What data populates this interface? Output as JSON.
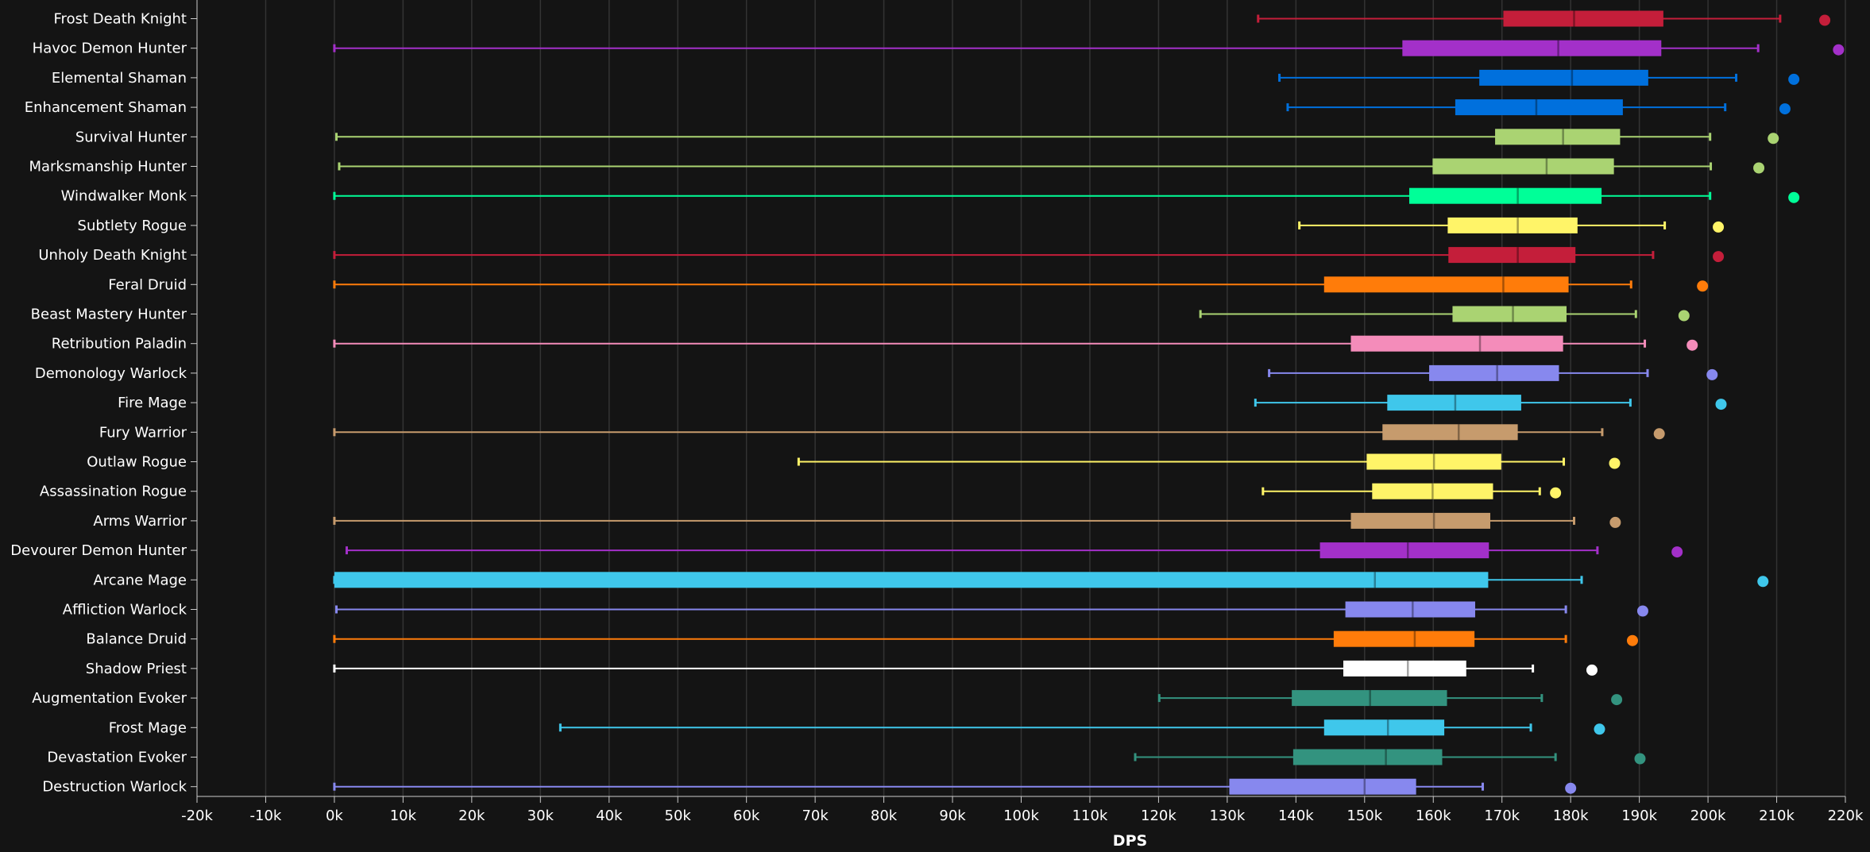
{
  "chart_data": {
    "type": "boxplot",
    "xlabel": "DPS",
    "xlim": [
      -20000,
      220000
    ],
    "x_ticks": [
      "-20k",
      "-10k",
      "0k",
      "10k",
      "20k",
      "30k",
      "40k",
      "50k",
      "60k",
      "70k",
      "80k",
      "90k",
      "100k",
      "110k",
      "120k",
      "130k",
      "140k",
      "150k",
      "160k",
      "170k",
      "180k",
      "190k",
      "200k",
      "210k",
      "220k"
    ],
    "grid": true,
    "orientation": "horizontal",
    "series": [
      {
        "name": "Frost Death Knight",
        "color": "#C41E3A",
        "min": 134500,
        "q1": 170200,
        "median": 180500,
        "q3": 193500,
        "max": 210500,
        "outlier": 217000
      },
      {
        "name": "Havoc Demon Hunter",
        "color": "#A330C9",
        "min": 0,
        "q1": 155500,
        "median": 178200,
        "q3": 193200,
        "max": 207300,
        "outlier": 219000
      },
      {
        "name": "Elemental Shaman",
        "color": "#0070DD",
        "min": 137600,
        "q1": 166700,
        "median": 180200,
        "q3": 191300,
        "max": 204100,
        "outlier": 212500
      },
      {
        "name": "Enhancement Shaman",
        "color": "#0070DD",
        "min": 138800,
        "q1": 163200,
        "median": 175000,
        "q3": 187600,
        "max": 202500,
        "outlier": 211200
      },
      {
        "name": "Survival Hunter",
        "color": "#AAD372",
        "min": 300,
        "q1": 169000,
        "median": 178900,
        "q3": 187200,
        "max": 200300,
        "outlier": 209500
      },
      {
        "name": "Marksmanship Hunter",
        "color": "#AAD372",
        "min": 700,
        "q1": 159900,
        "median": 176500,
        "q3": 186300,
        "max": 200400,
        "outlier": 207400
      },
      {
        "name": "Windwalker Monk",
        "color": "#00FF98",
        "min": 0,
        "q1": 156500,
        "median": 172300,
        "q3": 184500,
        "max": 200300,
        "outlier": 212500
      },
      {
        "name": "Subtlety Rogue",
        "color": "#FFF468",
        "min": 140500,
        "q1": 162100,
        "median": 172300,
        "q3": 181000,
        "max": 193700,
        "outlier": 201500
      },
      {
        "name": "Unholy Death Knight",
        "color": "#C41E3A",
        "min": 0,
        "q1": 162200,
        "median": 172300,
        "q3": 180700,
        "max": 192000,
        "outlier": 201500
      },
      {
        "name": "Feral Druid",
        "color": "#FF7C0A",
        "min": 0,
        "q1": 144100,
        "median": 170200,
        "q3": 179700,
        "max": 188800,
        "outlier": 199200
      },
      {
        "name": "Beast Mastery Hunter",
        "color": "#AAD372",
        "min": 126100,
        "q1": 162800,
        "median": 171600,
        "q3": 179400,
        "max": 189500,
        "outlier": 196500
      },
      {
        "name": "Retribution Paladin",
        "color": "#F48CBA",
        "min": 0,
        "q1": 148000,
        "median": 166800,
        "q3": 178900,
        "max": 190800,
        "outlier": 197700
      },
      {
        "name": "Demonology Warlock",
        "color": "#8788EE",
        "min": 136100,
        "q1": 159400,
        "median": 169300,
        "q3": 178300,
        "max": 191200,
        "outlier": 200600
      },
      {
        "name": "Fire Mage",
        "color": "#3FC7EB",
        "min": 134100,
        "q1": 153300,
        "median": 163200,
        "q3": 172800,
        "max": 188700,
        "outlier": 201900
      },
      {
        "name": "Fury Warrior",
        "color": "#C69B6D",
        "min": 0,
        "q1": 152600,
        "median": 163700,
        "q3": 172300,
        "max": 184600,
        "outlier": 192900
      },
      {
        "name": "Outlaw Rogue",
        "color": "#FFF468",
        "min": 67600,
        "q1": 150300,
        "median": 160100,
        "q3": 169900,
        "max": 179000,
        "outlier": 186400
      },
      {
        "name": "Assassination Rogue",
        "color": "#FFF468",
        "min": 135200,
        "q1": 151100,
        "median": 159900,
        "q3": 168700,
        "max": 175500,
        "outlier": 177800
      },
      {
        "name": "Arms Warrior",
        "color": "#C69B6D",
        "min": 0,
        "q1": 148000,
        "median": 160100,
        "q3": 168300,
        "max": 180500,
        "outlier": 186500
      },
      {
        "name": "Devourer Demon Hunter",
        "color": "#A330C9",
        "min": 1800,
        "q1": 143500,
        "median": 156300,
        "q3": 168100,
        "max": 183900,
        "outlier": 195500
      },
      {
        "name": "Arcane Mage",
        "color": "#3FC7EB",
        "min": 0,
        "q1": 0,
        "median": 151500,
        "q3": 168000,
        "max": 181600,
        "outlier": 208000
      },
      {
        "name": "Affliction Warlock",
        "color": "#8788EE",
        "min": 300,
        "q1": 147200,
        "median": 157000,
        "q3": 166100,
        "max": 179300,
        "outlier": 190500
      },
      {
        "name": "Balance Druid",
        "color": "#FF7C0A",
        "min": 0,
        "q1": 145500,
        "median": 157300,
        "q3": 166000,
        "max": 179300,
        "outlier": 189000
      },
      {
        "name": "Shadow Priest",
        "color": "#FFFFFF",
        "min": 0,
        "q1": 146900,
        "median": 156300,
        "q3": 164800,
        "max": 174500,
        "outlier": 183100
      },
      {
        "name": "Augmentation Evoker",
        "color": "#33937F",
        "min": 120100,
        "q1": 139400,
        "median": 150800,
        "q3": 162000,
        "max": 175800,
        "outlier": 186700
      },
      {
        "name": "Frost Mage",
        "color": "#3FC7EB",
        "min": 32900,
        "q1": 144100,
        "median": 153400,
        "q3": 161600,
        "max": 174200,
        "outlier": 184200
      },
      {
        "name": "Devastation Evoker",
        "color": "#33937F",
        "min": 116600,
        "q1": 139600,
        "median": 153100,
        "q3": 161300,
        "max": 177800,
        "outlier": 190100
      },
      {
        "name": "Destruction Warlock",
        "color": "#8788EE",
        "min": 0,
        "q1": 130300,
        "median": 150000,
        "q3": 157500,
        "max": 167200,
        "outlier": 180000
      }
    ]
  }
}
